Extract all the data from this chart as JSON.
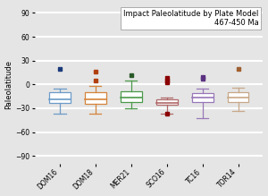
{
  "title_line1": "Impact Paleolatitude by Plate Model",
  "title_line2": "467-450 Ma",
  "ylabel": "Paleolatitude",
  "ylim": [
    -100,
    100
  ],
  "yticks": [
    -90,
    -60,
    -30,
    0,
    30,
    60,
    90
  ],
  "categories": [
    "DOM16",
    "DOM18",
    "MER21",
    "SCO16",
    "TC16",
    "TOR14"
  ],
  "box_colors": [
    "#6b9bc8",
    "#d4843a",
    "#4a9a4a",
    "#b06868",
    "#9878b8",
    "#c8a888"
  ],
  "flier_colors": [
    "#1a3a7a",
    "#b04010",
    "#2a5a2a",
    "#8b0000",
    "#5a3080",
    "#a06030"
  ],
  "boxes": [
    {
      "q1": -23,
      "median": -19,
      "q3": -10,
      "whislo": -37,
      "whishi": -5,
      "fliers": [
        20
      ]
    },
    {
      "q1": -24,
      "median": -19,
      "q3": -10,
      "whislo": -37,
      "whishi": -2,
      "fliers": [
        16,
        5
      ]
    },
    {
      "q1": -22,
      "median": -17,
      "q3": -9,
      "whislo": -30,
      "whishi": 5,
      "fliers": [
        12
      ]
    },
    {
      "q1": -25,
      "median": -23,
      "q3": -19,
      "whislo": -37,
      "whishi": -16,
      "fliers": [
        8,
        5,
        3,
        -37
      ]
    },
    {
      "q1": -22,
      "median": -17,
      "q3": -11,
      "whislo": -42,
      "whishi": -5,
      "fliers": [
        9,
        7
      ]
    },
    {
      "q1": -22,
      "median": -17,
      "q3": -10,
      "whislo": -33,
      "whishi": -4,
      "fliers": [
        19
      ]
    }
  ],
  "background_color": "#e5e5e5",
  "grid_color": "#ffffff",
  "box_width": 0.6,
  "linewidth": 0.9
}
